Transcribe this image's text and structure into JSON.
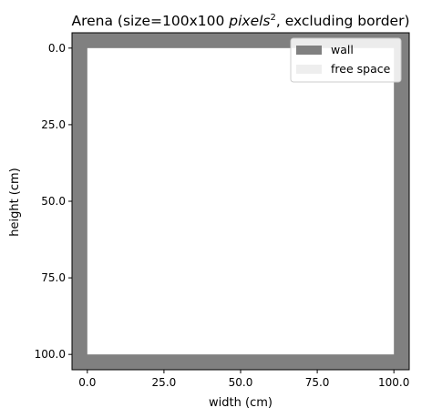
{
  "chart_data": {
    "type": "heatmap",
    "title_prefix": "Arena (size=100x100 ",
    "title_math": "pixels",
    "title_sup": "2",
    "title_suffix": ", excluding border)",
    "xlabel": "width (cm)",
    "ylabel": "height (cm)",
    "xlim": [
      -5,
      105
    ],
    "ylim": [
      105,
      -5
    ],
    "xticks": [
      0,
      25,
      50,
      75,
      100
    ],
    "xtick_labels": [
      "0.0",
      "25.0",
      "50.0",
      "75.0",
      "100.0"
    ],
    "yticks": [
      0,
      25,
      50,
      75,
      100
    ],
    "ytick_labels": [
      "0.0",
      "25.0",
      "50.0",
      "75.0",
      "100.0"
    ],
    "wall": {
      "x0": -5,
      "x1": 105,
      "y0": -5,
      "y1": 105
    },
    "free_space": {
      "x0": 0,
      "x1": 100,
      "y0": 0,
      "y1": 100
    },
    "legend": {
      "placement": "top-right",
      "items": [
        {
          "label": "wall",
          "color": "#808080"
        },
        {
          "label": "free space",
          "color": "#eeeeee"
        }
      ]
    },
    "colors": {
      "wall": "#808080",
      "free_space": "#ffffff"
    }
  }
}
